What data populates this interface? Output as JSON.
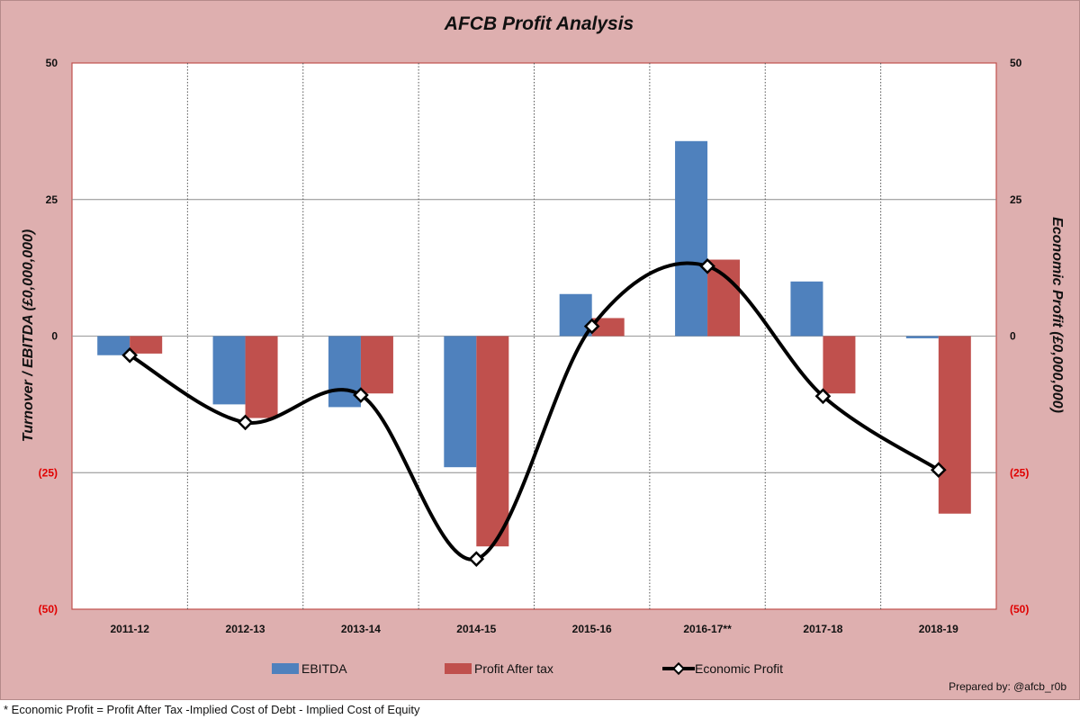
{
  "chart_data": {
    "type": "bar",
    "title": "AFCB Profit Analysis",
    "ylabel_left": "Turnover / EBITDA (£0,000,000)",
    "ylabel_right": "Economic Profit  (£0,000,000)",
    "categories": [
      "2011-12",
      "2012-13",
      "2013-14",
      "2014-15",
      "2015-16",
      "2016-17**",
      "2017-18",
      "2018-19"
    ],
    "ylim": [
      -50,
      50
    ],
    "yticks": [
      50,
      25,
      0,
      -25,
      -50
    ],
    "ytick_labels": [
      "50",
      "25",
      "0",
      "(25)",
      "(50)"
    ],
    "negative_tick_color": "#e00000",
    "series": [
      {
        "name": "EBITDA",
        "type": "bar",
        "color": "#4f81bd",
        "values": [
          -3.5,
          -12.5,
          -13,
          -24,
          7.7,
          35.7,
          10,
          -0.4
        ]
      },
      {
        "name": "Profit After tax",
        "type": "bar",
        "color": "#c0504d",
        "values": [
          -3.2,
          -15,
          -10.5,
          -38.5,
          3.3,
          14,
          -10.5,
          -32.5
        ]
      },
      {
        "name": "Economic Profit",
        "type": "line",
        "color": "#000000",
        "smooth": true,
        "values": [
          -3.5,
          -15.8,
          -10.8,
          -40.8,
          1.8,
          12.8,
          -11,
          -24.5
        ]
      }
    ],
    "legend_position": "bottom",
    "gridlines": "horizontal major; vertical dotted category separators"
  },
  "credit": "Prepared by: @afcb_r0b",
  "footnote": "* Economic Profit = Profit After Tax -Implied Cost of Debt - Implied Cost of Equity"
}
